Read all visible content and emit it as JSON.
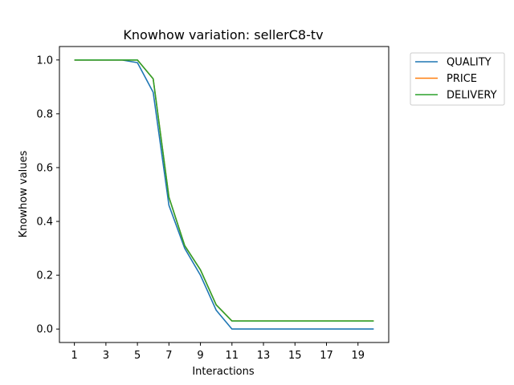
{
  "chart_data": {
    "type": "line",
    "title": "Knowhow variation: sellerC8-tv",
    "xlabel": "Interactions",
    "ylabel": "Knowhow values",
    "xlim": [
      0.05,
      20.95
    ],
    "ylim": [
      -0.05,
      1.05
    ],
    "x_ticks": [
      1,
      3,
      5,
      7,
      9,
      11,
      13,
      15,
      17,
      19
    ],
    "y_ticks": [
      0.0,
      0.2,
      0.4,
      0.6,
      0.8,
      1.0
    ],
    "y_tick_labels": [
      "0.0",
      "0.2",
      "0.4",
      "0.6",
      "0.8",
      "1.0"
    ],
    "x": [
      1,
      2,
      3,
      4,
      5,
      6,
      7,
      8,
      9,
      10,
      11,
      12,
      13,
      14,
      15,
      16,
      17,
      18,
      19,
      20
    ],
    "series": [
      {
        "name": "QUALITY",
        "color": "#1f77b4",
        "values": [
          1.0,
          1.0,
          1.0,
          1.0,
          0.99,
          0.88,
          0.46,
          0.3,
          0.2,
          0.07,
          0.0,
          0.0,
          0.0,
          0.0,
          0.0,
          0.0,
          0.0,
          0.0,
          0.0,
          0.0
        ]
      },
      {
        "name": "PRICE",
        "color": "#ff7f0e",
        "values": [
          1.0,
          1.0,
          1.0,
          1.0,
          1.0,
          0.93,
          0.49,
          0.31,
          0.22,
          0.09,
          0.03,
          0.03,
          0.03,
          0.03,
          0.03,
          0.03,
          0.03,
          0.03,
          0.03,
          0.03
        ]
      },
      {
        "name": "DELIVERY",
        "color": "#2ca02c",
        "values": [
          1.0,
          1.0,
          1.0,
          1.0,
          1.0,
          0.93,
          0.49,
          0.31,
          0.22,
          0.09,
          0.03,
          0.03,
          0.03,
          0.03,
          0.03,
          0.03,
          0.03,
          0.03,
          0.03,
          0.03
        ]
      }
    ],
    "legend_position": "outside-top-right",
    "grid": false
  }
}
